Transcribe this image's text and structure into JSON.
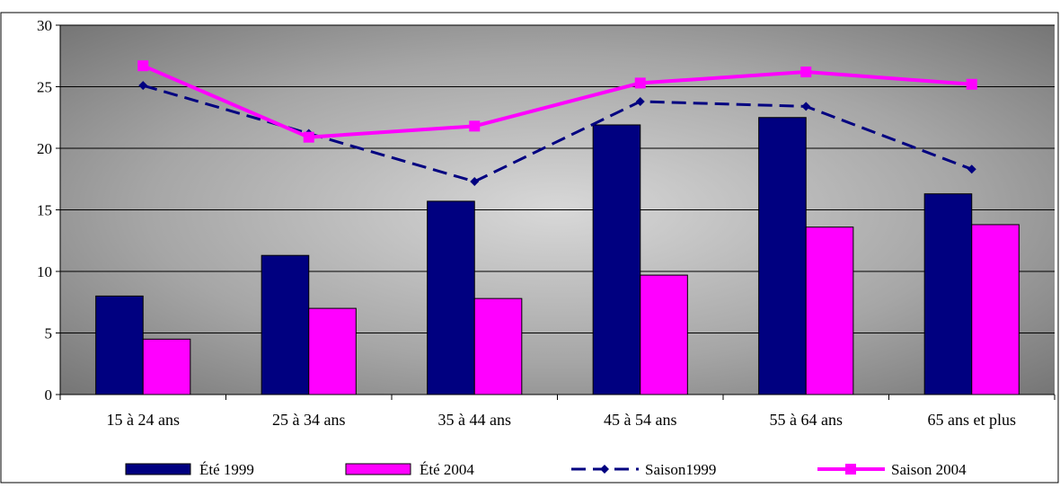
{
  "chart_data": {
    "type": "bar",
    "title": "",
    "xlabel": "",
    "ylabel": "",
    "ylim": [
      0,
      30
    ],
    "yticks": [
      0,
      5,
      10,
      15,
      20,
      25,
      30
    ],
    "grid": true,
    "legend_position": "bottom",
    "categories": [
      "15 à 24 ans",
      "25 à 34 ans",
      "35 à 44 ans",
      "45 à 54 ans",
      "55 à 64 ans",
      "65 ans et plus"
    ],
    "series": [
      {
        "name": "Été 1999",
        "kind": "bar",
        "color": "#000080",
        "values": [
          8.0,
          11.3,
          15.7,
          21.9,
          22.5,
          16.3
        ]
      },
      {
        "name": "Été 2004",
        "kind": "bar",
        "color": "#FF00FF",
        "values": [
          4.5,
          7.0,
          7.8,
          9.7,
          13.6,
          13.8
        ]
      },
      {
        "name": "Saison1999",
        "kind": "line",
        "style": "dashed",
        "marker": "diamond",
        "color": "#000080",
        "values": [
          25.1,
          21.2,
          17.3,
          23.8,
          23.4,
          18.3
        ]
      },
      {
        "name": "Saison 2004",
        "kind": "line",
        "style": "solid",
        "marker": "square",
        "color": "#FF00FF",
        "values": [
          26.7,
          20.9,
          21.8,
          25.3,
          26.2,
          25.2
        ]
      }
    ]
  }
}
